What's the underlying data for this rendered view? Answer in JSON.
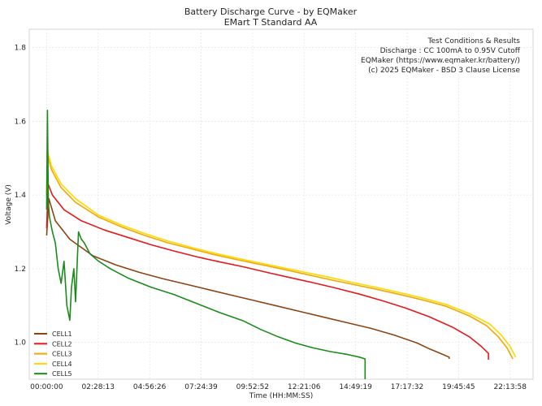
{
  "chart_data": {
    "type": "line",
    "title": "Battery Discharge Curve - by EQMaker",
    "subtitle": "EMart T Standard AA",
    "xlabel": "Time (HH:MM:SS)",
    "ylabel": "Voltage (V)",
    "xlim": [
      -3000,
      84000
    ],
    "ylim": [
      0.9,
      1.85
    ],
    "xticks": [
      {
        "value": 0,
        "label": "00:00:00"
      },
      {
        "value": 8893,
        "label": "02:28:13"
      },
      {
        "value": 17786,
        "label": "04:56:26"
      },
      {
        "value": 26679,
        "label": "07:24:39"
      },
      {
        "value": 35572,
        "label": "09:52:52"
      },
      {
        "value": 44466,
        "label": "12:21:06"
      },
      {
        "value": 53359,
        "label": "14:49:19"
      },
      {
        "value": 62252,
        "label": "17:17:32"
      },
      {
        "value": 71145,
        "label": "19:45:45"
      },
      {
        "value": 80038,
        "label": "22:13:58"
      }
    ],
    "yticks": [
      {
        "value": 1.0,
        "label": "1.0"
      },
      {
        "value": 1.2,
        "label": "1.2"
      },
      {
        "value": 1.4,
        "label": "1.4"
      },
      {
        "value": 1.6,
        "label": "1.6"
      },
      {
        "value": 1.8,
        "label": "1.8"
      }
    ],
    "grid": true,
    "legend_position": "bottom-left",
    "annotation": [
      "Test Conditions & Results",
      "Discharge : CC 100mA to 0.95V Cutoff",
      "EQMaker (https://www.eqmaker.kr/battery/)",
      "(c) 2025 EQMaker - BSD 3 Clause License"
    ],
    "series": [
      {
        "name": "CELL1",
        "color": "#8b4513",
        "x": [
          0,
          400,
          1500,
          4000,
          8000,
          12000,
          16000,
          20000,
          24000,
          28000,
          32000,
          36000,
          40000,
          44000,
          48000,
          52000,
          56000,
          60000,
          64000,
          66000,
          68000,
          69500,
          69500
        ],
        "y": [
          1.29,
          1.39,
          1.33,
          1.28,
          1.235,
          1.21,
          1.19,
          1.173,
          1.158,
          1.143,
          1.128,
          1.113,
          1.098,
          1.083,
          1.068,
          1.053,
          1.038,
          1.02,
          0.998,
          0.983,
          0.97,
          0.96,
          0.955
        ]
      },
      {
        "name": "CELL2",
        "color": "#e31a1c",
        "x": [
          0,
          250,
          1000,
          3000,
          6000,
          10000,
          14000,
          18000,
          22000,
          26000,
          30000,
          34000,
          38000,
          42000,
          46000,
          50000,
          54000,
          58000,
          62000,
          66000,
          70000,
          73000,
          75000,
          76300,
          76300
        ],
        "y": [
          1.31,
          1.43,
          1.4,
          1.36,
          1.33,
          1.305,
          1.285,
          1.265,
          1.248,
          1.232,
          1.218,
          1.205,
          1.19,
          1.176,
          1.162,
          1.147,
          1.131,
          1.113,
          1.093,
          1.07,
          1.042,
          1.015,
          0.99,
          0.97,
          0.953
        ]
      },
      {
        "name": "CELL3",
        "color": "#f0a800",
        "x": [
          0,
          150,
          800,
          2500,
          5000,
          9000,
          13000,
          17000,
          21000,
          25000,
          29000,
          33000,
          37000,
          41000,
          45000,
          49000,
          53000,
          57000,
          61000,
          65000,
          69000,
          73000,
          76000,
          78000,
          79500,
          80500
        ],
        "y": [
          1.4,
          1.51,
          1.47,
          1.42,
          1.38,
          1.34,
          1.313,
          1.29,
          1.27,
          1.254,
          1.238,
          1.224,
          1.211,
          1.198,
          1.184,
          1.17,
          1.157,
          1.144,
          1.13,
          1.115,
          1.098,
          1.072,
          1.045,
          1.015,
          0.985,
          0.955
        ]
      },
      {
        "name": "CELL4",
        "color": "#ffd700",
        "x": [
          0,
          150,
          800,
          2500,
          5000,
          9000,
          13000,
          17000,
          21000,
          25000,
          29000,
          33000,
          37000,
          41000,
          45000,
          49000,
          53000,
          57000,
          61000,
          65000,
          69000,
          73000,
          76500,
          78500,
          80000,
          81000
        ],
        "y": [
          1.41,
          1.52,
          1.48,
          1.43,
          1.39,
          1.345,
          1.318,
          1.295,
          1.275,
          1.258,
          1.242,
          1.228,
          1.215,
          1.202,
          1.189,
          1.176,
          1.162,
          1.149,
          1.135,
          1.12,
          1.103,
          1.078,
          1.05,
          1.02,
          0.99,
          0.96
        ]
      },
      {
        "name": "CELL5",
        "color": "#1a8c1a",
        "x": [
          0,
          150,
          300,
          500,
          1000,
          1500,
          2000,
          2500,
          3000,
          3500,
          4000,
          4300,
          4700,
          5000,
          5500,
          6000,
          6500,
          7500,
          9000,
          11000,
          14000,
          18000,
          22000,
          26000,
          30000,
          34000,
          37000,
          40000,
          43000,
          46000,
          49000,
          52000,
          54000,
          55000,
          55000
        ],
        "y": [
          1.36,
          1.63,
          1.38,
          1.34,
          1.3,
          1.27,
          1.2,
          1.16,
          1.22,
          1.1,
          1.06,
          1.15,
          1.2,
          1.11,
          1.3,
          1.28,
          1.27,
          1.24,
          1.22,
          1.2,
          1.175,
          1.15,
          1.13,
          1.105,
          1.08,
          1.058,
          1.035,
          1.015,
          0.998,
          0.985,
          0.975,
          0.967,
          0.96,
          0.955,
          0.9
        ]
      }
    ]
  }
}
